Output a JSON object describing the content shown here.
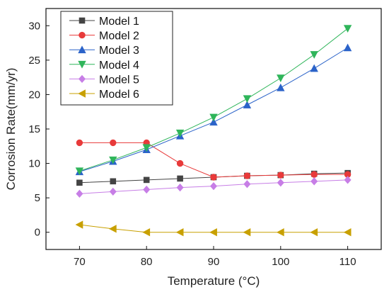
{
  "chart_data": {
    "type": "line",
    "xlabel": "Temperature (°C)",
    "ylabel": "Corrosion Rate(mm/yr)",
    "xlim": [
      65,
      115
    ],
    "ylim": [
      -2.5,
      32.5
    ],
    "xticks": [
      70,
      80,
      90,
      100,
      110
    ],
    "yticks": [
      0,
      5,
      10,
      15,
      20,
      25,
      30
    ],
    "legend_position": "top-left",
    "x": [
      70,
      75,
      80,
      85,
      90,
      95,
      100,
      105,
      110
    ],
    "series": [
      {
        "name": "Model 1",
        "color": "#444444",
        "marker": "square",
        "values": [
          7.2,
          7.4,
          7.6,
          7.8,
          8.0,
          8.2,
          8.3,
          8.5,
          8.6
        ]
      },
      {
        "name": "Model 2",
        "color": "#e83a3a",
        "marker": "circle",
        "values": [
          13.0,
          13.0,
          13.0,
          10.0,
          8.0,
          8.2,
          8.3,
          8.4,
          8.4
        ]
      },
      {
        "name": "Model 3",
        "color": "#2b63c9",
        "marker": "triangle-up",
        "values": [
          8.8,
          10.3,
          12.0,
          14.0,
          16.0,
          18.5,
          21.0,
          23.8,
          26.8
        ]
      },
      {
        "name": "Model 4",
        "color": "#2fb55a",
        "marker": "triangle-down",
        "values": [
          8.9,
          10.5,
          12.3,
          14.4,
          16.7,
          19.4,
          22.4,
          25.8,
          29.6
        ]
      },
      {
        "name": "Model 5",
        "color": "#c77ee6",
        "marker": "diamond",
        "values": [
          5.6,
          5.9,
          6.2,
          6.5,
          6.7,
          7.0,
          7.2,
          7.4,
          7.6
        ]
      },
      {
        "name": "Model 6",
        "color": "#c8a000",
        "marker": "triangle-left",
        "values": [
          1.1,
          0.5,
          0.0,
          0.0,
          0.0,
          0.0,
          0.0,
          0.0,
          0.0
        ]
      }
    ]
  }
}
